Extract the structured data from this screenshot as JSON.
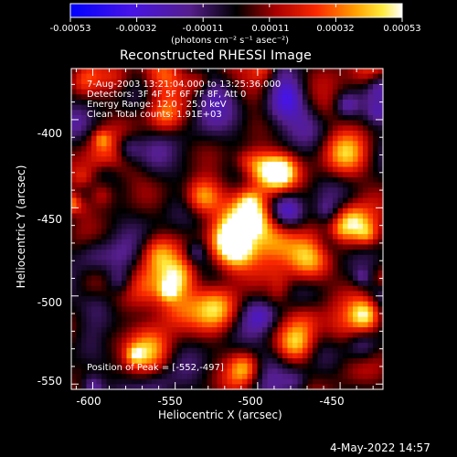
{
  "colorbar": {
    "tick_labels": [
      "-0.00053",
      "-0.00032",
      "-0.00011",
      "0.00011",
      "0.00032",
      "0.00053"
    ],
    "range": [
      -0.00053,
      0.00053
    ],
    "units": "(photons cm⁻² s⁻¹ asec⁻²)"
  },
  "image": {
    "title": "Reconstructed RHESSI Image",
    "time_range": "7-Aug-2003 13:21:04.000 to 13:25:36.000",
    "detectors": "Detectors: 3F 4F 5F 6F 7F 8F, Att 0",
    "energy_range": "Energy Range: 12.0 - 25.0 keV",
    "clean_total": "Clean     Total counts: 1.91E+03",
    "peak_position": "Position of Peak = [-552,-497]"
  },
  "axes": {
    "xlabel": "Heliocentric X (arcsec)",
    "ylabel": "Heliocentric Y (arcsec)",
    "x_ticks": [
      {
        "value": -600,
        "label": "-600"
      },
      {
        "value": -550,
        "label": "-550"
      },
      {
        "value": -500,
        "label": "-500"
      },
      {
        "value": -450,
        "label": "-450"
      }
    ],
    "y_ticks": [
      {
        "value": -400,
        "label": "-400"
      },
      {
        "value": -450,
        "label": "-450"
      },
      {
        "value": -500,
        "label": "-500"
      },
      {
        "value": -550,
        "label": "-550"
      }
    ],
    "xlim": [
      -613,
      -424
    ],
    "ylim": [
      -553,
      -371
    ]
  },
  "footer": {
    "date": "4-May-2022 14:57"
  }
}
